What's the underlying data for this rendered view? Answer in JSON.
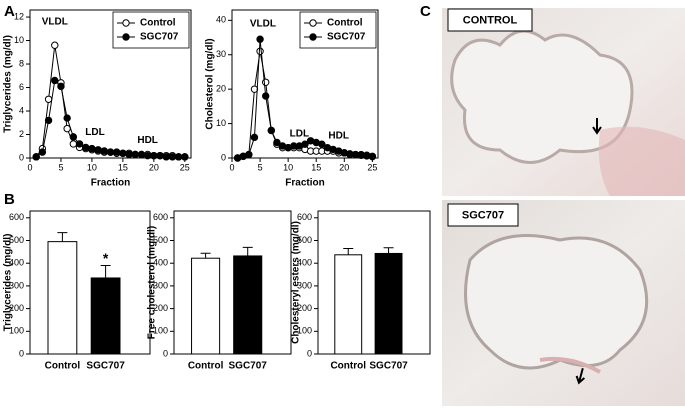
{
  "panel_labels": [
    "A",
    "B",
    "C"
  ],
  "images": [
    {
      "label": "CONTROL"
    },
    {
      "label": "SGC707"
    }
  ],
  "chart_data": [
    {
      "type": "line",
      "ylabel": "Triglycerides (mg/dl)",
      "xlabel": "Fraction",
      "x": [
        1,
        2,
        3,
        4,
        5,
        6,
        7,
        8,
        9,
        10,
        11,
        12,
        13,
        14,
        15,
        16,
        17,
        18,
        19,
        20,
        21,
        22,
        23,
        24,
        25
      ],
      "series": [
        {
          "name": "Control",
          "color": "#ffffff",
          "values": [
            0.1,
            0.8,
            5,
            9.6,
            6.4,
            2.5,
            1.2,
            0.9,
            0.8,
            0.7,
            0.6,
            0.5,
            0.5,
            0.4,
            0.4,
            0.4,
            0.3,
            0.3,
            0.3,
            0.2,
            0.2,
            0.2,
            0.2,
            0.1,
            0.1
          ]
        },
        {
          "name": "SGC707",
          "color": "#000000",
          "values": [
            0.1,
            0.5,
            3.2,
            6.6,
            6.1,
            3.4,
            1.8,
            1.2,
            0.9,
            0.8,
            0.7,
            0.6,
            0.5,
            0.5,
            0.4,
            0.3,
            0.3,
            0.3,
            0.2,
            0.2,
            0.2,
            0.1,
            0.1,
            0.1,
            0.1
          ]
        }
      ],
      "xlim": [
        0,
        26
      ],
      "xticks": [
        0,
        5,
        10,
        15,
        20,
        25
      ],
      "ylim": [
        0,
        12.6
      ],
      "yticks": [
        0,
        2,
        4,
        6,
        8,
        10,
        12
      ],
      "annotations": [
        "VLDL",
        "LDL",
        "HDL"
      ],
      "legend": "upper right"
    },
    {
      "type": "line",
      "ylabel": "Cholesterol (mg/dl)",
      "xlabel": "Fraction",
      "x": [
        1,
        2,
        3,
        4,
        5,
        6,
        7,
        8,
        9,
        10,
        11,
        12,
        13,
        14,
        15,
        16,
        17,
        18,
        19,
        20,
        21,
        22,
        23,
        24,
        25
      ],
      "series": [
        {
          "name": "Control",
          "color": "#ffffff",
          "values": [
            0,
            0.5,
            1,
            20,
            31,
            22,
            8,
            4,
            3,
            3,
            3,
            3,
            2.5,
            2,
            2,
            2,
            2,
            2,
            1.5,
            1.5,
            1.2,
            1,
            1,
            0.8,
            0.5
          ]
        },
        {
          "name": "SGC707",
          "color": "#000000",
          "values": [
            0,
            0.5,
            1,
            6,
            34.5,
            18,
            8,
            4.5,
            3.5,
            3,
            3.5,
            3.5,
            4,
            5,
            4.5,
            4,
            3,
            2.5,
            2,
            1.5,
            1,
            1,
            0.8,
            0.6,
            0.4
          ]
        }
      ],
      "xlim": [
        0,
        26
      ],
      "xticks": [
        0,
        5,
        10,
        15,
        20,
        25
      ],
      "ylim": [
        0,
        43
      ],
      "yticks": [
        0,
        10,
        20,
        30,
        40
      ],
      "annotations": [
        "VLDL",
        "LDL",
        "HDL"
      ],
      "legend": "upper right"
    },
    {
      "type": "bar",
      "ylabel": "Triglycerides (mg/dl)",
      "categories": [
        "Control",
        "SGC707"
      ],
      "values": [
        495,
        335
      ],
      "errors": [
        40,
        55
      ],
      "colors": [
        "#ffffff",
        "#000000"
      ],
      "value_annotations": [
        null,
        "*"
      ],
      "ylim": [
        0,
        630
      ],
      "yticks": [
        0,
        100,
        200,
        300,
        400,
        500,
        600
      ]
    },
    {
      "type": "bar",
      "ylabel": "Free cholesterol (mg/dl)",
      "categories": [
        "Control",
        "SGC707"
      ],
      "values": [
        422,
        432
      ],
      "errors": [
        22,
        38
      ],
      "colors": [
        "#ffffff",
        "#000000"
      ],
      "ylim": [
        0,
        630
      ],
      "yticks": [
        0,
        100,
        200,
        300,
        400,
        500,
        600
      ]
    },
    {
      "type": "bar",
      "ylabel": "Cholesteryl esters (mg/dl)",
      "categories": [
        "Control",
        "SGC707"
      ],
      "values": [
        437,
        443
      ],
      "errors": [
        28,
        25
      ],
      "colors": [
        "#ffffff",
        "#000000"
      ],
      "ylim": [
        0,
        630
      ],
      "yticks": [
        0,
        100,
        200,
        300,
        400,
        500,
        600
      ]
    }
  ]
}
